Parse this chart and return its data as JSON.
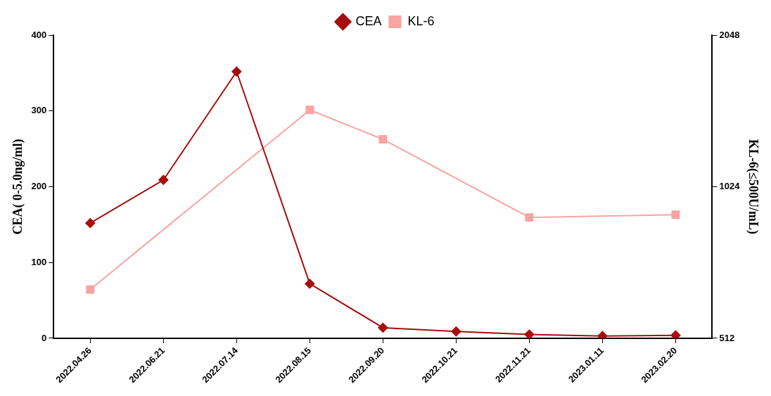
{
  "chart_data": {
    "type": "line",
    "categories": [
      "2022.04.26",
      "2022.06.21",
      "2022.07.14",
      "2022.08.15",
      "2022.09.20",
      "2022.10.21",
      "2022.11.21",
      "2023.01.11",
      "2023.02.20"
    ],
    "series": [
      {
        "name": "CEA",
        "color": "#a50f0f",
        "marker": "diamond",
        "values": [
          152,
          209,
          352,
          72,
          14,
          9,
          5,
          3,
          4
        ]
      },
      {
        "name": "KL-6",
        "color": "#f9a3a3",
        "marker": "square",
        "axis": "y2",
        "values": [
          640,
          null,
          null,
          1455,
          1272,
          null,
          890,
          null,
          901
        ]
      }
    ],
    "ylabel": "CEA( 0-5.0ng/ml)",
    "y2label": "KL-6(≤500U/mL)",
    "ylim": [
      0,
      400
    ],
    "yticks": [
      0,
      100,
      200,
      300,
      400
    ],
    "y2lim": [
      512,
      2048
    ],
    "y2ticks": [
      512,
      1024,
      2048
    ],
    "log": "y2",
    "grid": false,
    "legend": "top",
    "line_style": "solid"
  }
}
